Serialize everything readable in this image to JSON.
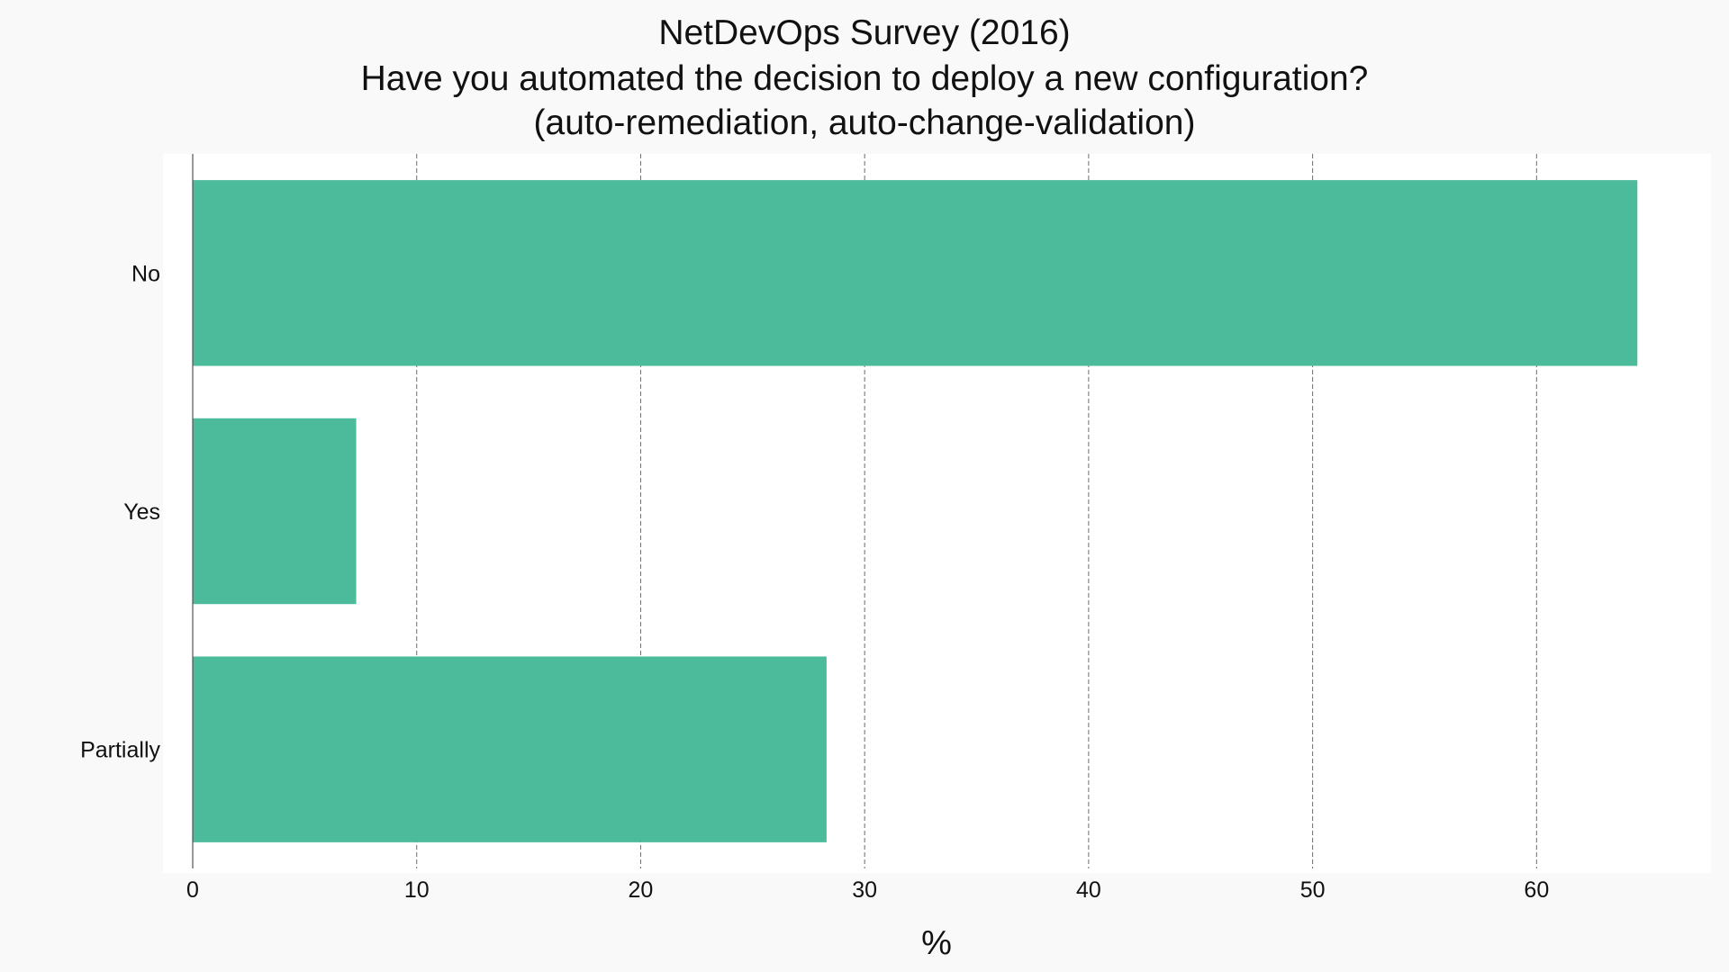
{
  "chart_data": {
    "type": "bar",
    "orientation": "horizontal",
    "title_lines": [
      "NetDevOps Survey (2016)",
      "Have you automated the decision to deploy a new configuration?",
      "(auto-remediation, auto-change-validation)"
    ],
    "categories": [
      "No",
      "Yes",
      "Partially"
    ],
    "values": [
      64.5,
      7.3,
      28.3
    ],
    "xlabel": "%",
    "ylabel": "",
    "xlim": [
      0,
      66.5
    ],
    "xticks": [
      "0",
      "10",
      "20",
      "30",
      "40",
      "50",
      "60"
    ],
    "grid": "x",
    "bar_color": "#4cbb9b",
    "plot_background": "#ffffff",
    "figure_background": "#f9f9f9"
  }
}
